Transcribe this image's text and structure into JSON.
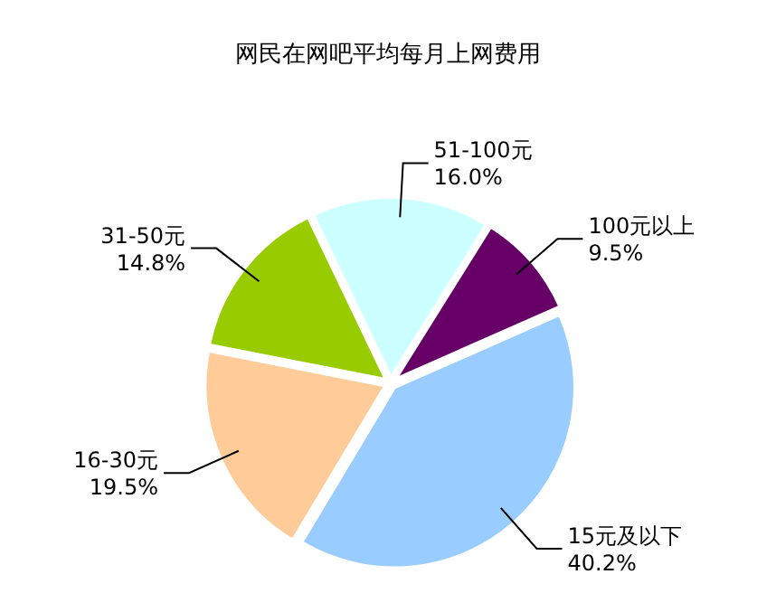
{
  "chart_data": {
    "type": "pie",
    "title": "网民在网吧平均每月上网费用",
    "categories": [
      "100元以上",
      "15元及以下",
      "16-30元",
      "31-50元",
      "51-100元"
    ],
    "values": [
      9.5,
      40.2,
      19.5,
      14.8,
      16.0
    ],
    "value_labels": [
      "9.5%",
      "40.2%",
      "19.5%",
      "14.8%",
      "16.0%"
    ],
    "colors": [
      "#660066",
      "#99ccff",
      "#ffcc99",
      "#99cc00",
      "#ccffff"
    ]
  }
}
